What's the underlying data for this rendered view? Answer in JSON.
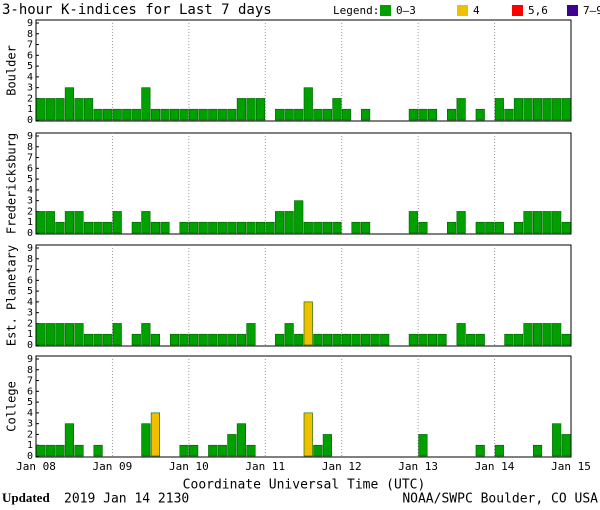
{
  "chart_data": {
    "type": "bar",
    "title": "3-hour K-indices for Last 7 days",
    "legend_title": "Legend:",
    "legend": [
      {
        "label": "0–3",
        "color": "#00a000"
      },
      {
        "label": "4",
        "color": "#f0c000"
      },
      {
        "label": "5,6",
        "color": "#ff0000"
      },
      {
        "label": "7–9",
        "color": "#400090"
      }
    ],
    "x_label": "Coordinate Universal Time (UTC)",
    "xticks": [
      "Jan 08",
      "Jan 09",
      "Jan 10",
      "Jan 11",
      "Jan 12",
      "Jan 13",
      "Jan 14",
      "Jan 15"
    ],
    "ylim": [
      0,
      9
    ],
    "yticks": [
      0,
      1,
      2,
      3,
      4,
      5,
      6,
      7,
      8,
      9
    ],
    "panels": [
      {
        "name": "Boulder",
        "values": [
          2,
          2,
          2,
          3,
          2,
          2,
          1,
          1,
          1,
          1,
          1,
          3,
          1,
          1,
          1,
          1,
          1,
          1,
          1,
          1,
          1,
          2,
          2,
          2,
          0,
          1,
          1,
          1,
          3,
          1,
          1,
          2,
          1,
          0,
          1,
          0,
          0,
          0,
          0,
          1,
          1,
          1,
          0,
          1,
          2,
          0,
          1,
          0,
          2,
          1,
          2,
          2,
          2,
          2,
          2,
          2
        ]
      },
      {
        "name": "Fredericksburg",
        "values": [
          2,
          2,
          1,
          2,
          2,
          1,
          1,
          1,
          2,
          0,
          1,
          2,
          1,
          1,
          0,
          1,
          1,
          1,
          1,
          1,
          1,
          1,
          1,
          1,
          1,
          2,
          2,
          3,
          1,
          1,
          1,
          1,
          0,
          1,
          1,
          0,
          0,
          0,
          0,
          2,
          1,
          0,
          0,
          1,
          2,
          0,
          1,
          1,
          1,
          0,
          1,
          2,
          2,
          2,
          2,
          1
        ]
      },
      {
        "name": "Est. Planetary",
        "values": [
          2,
          2,
          2,
          2,
          2,
          1,
          1,
          1,
          2,
          0,
          1,
          2,
          1,
          0,
          1,
          1,
          1,
          1,
          1,
          1,
          1,
          1,
          2,
          0,
          0,
          1,
          2,
          1,
          4,
          1,
          1,
          1,
          1,
          1,
          1,
          1,
          1,
          0,
          0,
          1,
          1,
          1,
          1,
          0,
          2,
          1,
          1,
          0,
          0,
          1,
          1,
          2,
          2,
          2,
          2,
          1
        ]
      },
      {
        "name": "College",
        "values": [
          1,
          1,
          1,
          3,
          1,
          0,
          1,
          0,
          0,
          0,
          0,
          3,
          4,
          0,
          0,
          1,
          1,
          0,
          1,
          1,
          2,
          3,
          1,
          0,
          0,
          0,
          0,
          0,
          4,
          1,
          2,
          0,
          0,
          0,
          0,
          0,
          0,
          0,
          0,
          0,
          2,
          0,
          0,
          0,
          0,
          0,
          1,
          0,
          1,
          0,
          0,
          0,
          1,
          0,
          3,
          2
        ]
      }
    ]
  },
  "footer": {
    "updated_label": "Updated",
    "updated": "2019 Jan 14 2130",
    "credit": "NOAA/SWPC Boulder, CO USA"
  }
}
